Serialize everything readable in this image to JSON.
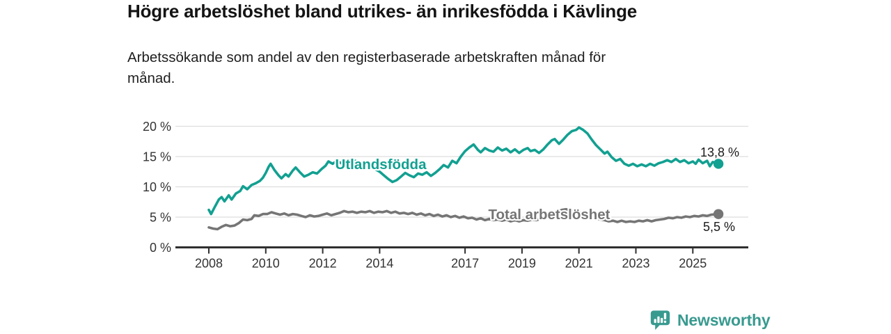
{
  "header": {
    "title": "Högre arbetslöshet bland utrikes- än inrikesfödda i Kävlinge",
    "subtitle": "Arbetssökande som andel av den registerbaserade arbetskraften månad för\nmånad."
  },
  "footer": {
    "brand": "Newsworthy"
  },
  "colors": {
    "accent_teal": "#12a091",
    "series_gray": "#757575",
    "axis_line": "#2f2f2f",
    "grid_line": "#dddddd",
    "tick_text": "#333333",
    "annotation_text": "#1a1a1a",
    "brand_teal": "#389a8f",
    "background": "#ffffff"
  },
  "chart_data": {
    "type": "line",
    "title": "Högre arbetslöshet bland utrikes- än inrikesfödda i Kävlinge",
    "subtitle": "Arbetssökande som andel av den registerbaserade arbetskraften månad för månad.",
    "grid": true,
    "legend_position": "inline-labels",
    "x_axis": {
      "ticks": [
        2008,
        2010,
        2012,
        2014,
        2017,
        2019,
        2021,
        2023,
        2025
      ],
      "tick_labels": [
        "2008",
        "2010",
        "2012",
        "2014",
        "2017",
        "2019",
        "2021",
        "2023",
        "2025"
      ],
      "range": [
        2006.85,
        2026.95
      ]
    },
    "y_axis": {
      "ticks": [
        0,
        5,
        10,
        15,
        20
      ],
      "tick_labels": [
        "0 %",
        "5 %",
        "10 %",
        "15 %",
        "20 %"
      ],
      "range": [
        0,
        20
      ],
      "unit": "%"
    },
    "series": [
      {
        "name": "Utlandsfödda",
        "color": "#12a091",
        "end_value": 13.8,
        "end_label": "13,8 %",
        "points": [
          [
            2008.0,
            6.2
          ],
          [
            2008.08,
            5.5
          ],
          [
            2008.2,
            6.6
          ],
          [
            2008.35,
            7.9
          ],
          [
            2008.45,
            8.3
          ],
          [
            2008.55,
            7.6
          ],
          [
            2008.7,
            8.6
          ],
          [
            2008.8,
            7.9
          ],
          [
            2008.95,
            8.9
          ],
          [
            2009.1,
            9.3
          ],
          [
            2009.2,
            10.1
          ],
          [
            2009.35,
            9.6
          ],
          [
            2009.5,
            10.3
          ],
          [
            2009.65,
            10.6
          ],
          [
            2009.8,
            11.0
          ],
          [
            2009.9,
            11.5
          ],
          [
            2010.0,
            12.3
          ],
          [
            2010.1,
            13.3
          ],
          [
            2010.17,
            13.8
          ],
          [
            2010.3,
            12.8
          ],
          [
            2010.45,
            11.9
          ],
          [
            2010.55,
            11.4
          ],
          [
            2010.7,
            12.1
          ],
          [
            2010.8,
            11.7
          ],
          [
            2010.95,
            12.7
          ],
          [
            2011.05,
            13.2
          ],
          [
            2011.2,
            12.4
          ],
          [
            2011.35,
            11.7
          ],
          [
            2011.5,
            12.0
          ],
          [
            2011.65,
            12.4
          ],
          [
            2011.8,
            12.2
          ],
          [
            2011.95,
            12.9
          ],
          [
            2012.1,
            13.5
          ],
          [
            2012.2,
            14.2
          ],
          [
            2012.35,
            13.8
          ],
          [
            2012.5,
            14.3
          ],
          [
            2012.65,
            13.9
          ],
          [
            2012.8,
            14.4
          ],
          [
            2013.0,
            14.0
          ],
          [
            2013.15,
            14.3
          ],
          [
            2013.3,
            13.8
          ],
          [
            2013.5,
            14.1
          ],
          [
            2013.7,
            13.4
          ],
          [
            2013.85,
            12.9
          ],
          [
            2014.0,
            12.5
          ],
          [
            2014.15,
            11.9
          ],
          [
            2014.3,
            11.3
          ],
          [
            2014.45,
            10.8
          ],
          [
            2014.6,
            11.1
          ],
          [
            2014.75,
            11.7
          ],
          [
            2014.9,
            12.3
          ],
          [
            2015.05,
            11.9
          ],
          [
            2015.2,
            11.6
          ],
          [
            2015.35,
            12.2
          ],
          [
            2015.5,
            12.0
          ],
          [
            2015.65,
            12.4
          ],
          [
            2015.8,
            11.8
          ],
          [
            2015.95,
            12.3
          ],
          [
            2016.1,
            12.9
          ],
          [
            2016.25,
            13.6
          ],
          [
            2016.4,
            13.2
          ],
          [
            2016.55,
            14.3
          ],
          [
            2016.7,
            13.9
          ],
          [
            2016.85,
            15.0
          ],
          [
            2017.0,
            15.9
          ],
          [
            2017.15,
            16.5
          ],
          [
            2017.3,
            17.0
          ],
          [
            2017.45,
            16.1
          ],
          [
            2017.55,
            15.7
          ],
          [
            2017.7,
            16.4
          ],
          [
            2017.85,
            16.0
          ],
          [
            2018.0,
            15.8
          ],
          [
            2018.15,
            16.5
          ],
          [
            2018.3,
            16.0
          ],
          [
            2018.45,
            16.3
          ],
          [
            2018.6,
            15.7
          ],
          [
            2018.75,
            16.2
          ],
          [
            2018.9,
            15.6
          ],
          [
            2019.05,
            16.1
          ],
          [
            2019.2,
            16.4
          ],
          [
            2019.3,
            15.9
          ],
          [
            2019.45,
            16.1
          ],
          [
            2019.6,
            15.6
          ],
          [
            2019.75,
            16.2
          ],
          [
            2019.9,
            17.0
          ],
          [
            2020.05,
            17.7
          ],
          [
            2020.15,
            17.9
          ],
          [
            2020.3,
            17.1
          ],
          [
            2020.45,
            17.8
          ],
          [
            2020.6,
            18.6
          ],
          [
            2020.75,
            19.2
          ],
          [
            2020.9,
            19.4
          ],
          [
            2021.0,
            19.8
          ],
          [
            2021.15,
            19.4
          ],
          [
            2021.3,
            18.8
          ],
          [
            2021.45,
            17.8
          ],
          [
            2021.6,
            16.9
          ],
          [
            2021.75,
            16.2
          ],
          [
            2021.9,
            15.5
          ],
          [
            2022.0,
            15.8
          ],
          [
            2022.15,
            14.9
          ],
          [
            2022.3,
            14.3
          ],
          [
            2022.45,
            14.6
          ],
          [
            2022.6,
            13.8
          ],
          [
            2022.75,
            13.5
          ],
          [
            2022.9,
            13.8
          ],
          [
            2023.05,
            13.4
          ],
          [
            2023.2,
            13.7
          ],
          [
            2023.35,
            13.4
          ],
          [
            2023.5,
            13.8
          ],
          [
            2023.65,
            13.5
          ],
          [
            2023.8,
            13.9
          ],
          [
            2023.95,
            14.1
          ],
          [
            2024.1,
            14.4
          ],
          [
            2024.25,
            14.1
          ],
          [
            2024.4,
            14.6
          ],
          [
            2024.55,
            14.1
          ],
          [
            2024.7,
            14.4
          ],
          [
            2024.85,
            13.9
          ],
          [
            2025.0,
            14.2
          ],
          [
            2025.1,
            13.8
          ],
          [
            2025.2,
            14.5
          ],
          [
            2025.35,
            13.9
          ],
          [
            2025.5,
            14.3
          ],
          [
            2025.6,
            13.4
          ],
          [
            2025.7,
            14.1
          ],
          [
            2025.9,
            13.8
          ]
        ]
      },
      {
        "name": "Total arbetslöshet",
        "color": "#757575",
        "end_value": 5.5,
        "end_label": "5,5 %",
        "points": [
          [
            2008.0,
            3.3
          ],
          [
            2008.15,
            3.1
          ],
          [
            2008.3,
            3.0
          ],
          [
            2008.45,
            3.4
          ],
          [
            2008.6,
            3.7
          ],
          [
            2008.75,
            3.5
          ],
          [
            2008.9,
            3.6
          ],
          [
            2009.05,
            4.0
          ],
          [
            2009.2,
            4.6
          ],
          [
            2009.35,
            4.5
          ],
          [
            2009.5,
            4.7
          ],
          [
            2009.6,
            5.3
          ],
          [
            2009.75,
            5.2
          ],
          [
            2009.9,
            5.5
          ],
          [
            2010.05,
            5.5
          ],
          [
            2010.2,
            5.8
          ],
          [
            2010.35,
            5.6
          ],
          [
            2010.5,
            5.4
          ],
          [
            2010.65,
            5.6
          ],
          [
            2010.8,
            5.3
          ],
          [
            2010.95,
            5.5
          ],
          [
            2011.1,
            5.4
          ],
          [
            2011.25,
            5.2
          ],
          [
            2011.4,
            5.0
          ],
          [
            2011.55,
            5.3
          ],
          [
            2011.7,
            5.1
          ],
          [
            2011.85,
            5.2
          ],
          [
            2012.0,
            5.4
          ],
          [
            2012.15,
            5.6
          ],
          [
            2012.3,
            5.3
          ],
          [
            2012.45,
            5.5
          ],
          [
            2012.6,
            5.7
          ],
          [
            2012.75,
            6.0
          ],
          [
            2012.9,
            5.8
          ],
          [
            2013.05,
            5.9
          ],
          [
            2013.2,
            5.7
          ],
          [
            2013.35,
            5.9
          ],
          [
            2013.5,
            5.8
          ],
          [
            2013.65,
            6.0
          ],
          [
            2013.8,
            5.7
          ],
          [
            2013.95,
            5.9
          ],
          [
            2014.1,
            5.8
          ],
          [
            2014.25,
            6.0
          ],
          [
            2014.4,
            5.7
          ],
          [
            2014.55,
            5.9
          ],
          [
            2014.7,
            5.6
          ],
          [
            2014.85,
            5.7
          ],
          [
            2015.0,
            5.5
          ],
          [
            2015.15,
            5.7
          ],
          [
            2015.3,
            5.4
          ],
          [
            2015.45,
            5.6
          ],
          [
            2015.6,
            5.3
          ],
          [
            2015.75,
            5.5
          ],
          [
            2015.9,
            5.2
          ],
          [
            2016.05,
            5.4
          ],
          [
            2016.2,
            5.1
          ],
          [
            2016.35,
            5.3
          ],
          [
            2016.5,
            5.0
          ],
          [
            2016.65,
            5.2
          ],
          [
            2016.8,
            4.9
          ],
          [
            2016.95,
            5.1
          ],
          [
            2017.1,
            4.8
          ],
          [
            2017.25,
            4.9
          ],
          [
            2017.4,
            4.6
          ],
          [
            2017.55,
            4.8
          ],
          [
            2017.7,
            4.5
          ],
          [
            2017.85,
            4.7
          ],
          [
            2018.0,
            4.5
          ],
          [
            2018.15,
            4.6
          ],
          [
            2018.3,
            4.4
          ],
          [
            2018.45,
            4.6
          ],
          [
            2018.6,
            4.3
          ],
          [
            2018.75,
            4.5
          ],
          [
            2018.9,
            4.3
          ],
          [
            2019.05,
            4.5
          ],
          [
            2019.2,
            4.4
          ],
          [
            2019.35,
            4.6
          ],
          [
            2019.5,
            4.5
          ],
          [
            2019.65,
            4.7
          ],
          [
            2019.8,
            4.8
          ],
          [
            2019.95,
            5.0
          ],
          [
            2020.1,
            5.5
          ],
          [
            2020.25,
            5.9
          ],
          [
            2020.4,
            6.2
          ],
          [
            2020.55,
            6.3
          ],
          [
            2020.7,
            6.1
          ],
          [
            2020.85,
            6.0
          ],
          [
            2021.0,
            5.8
          ],
          [
            2021.15,
            5.6
          ],
          [
            2021.3,
            5.3
          ],
          [
            2021.45,
            5.1
          ],
          [
            2021.6,
            4.8
          ],
          [
            2021.75,
            4.6
          ],
          [
            2021.9,
            4.5
          ],
          [
            2022.05,
            4.3
          ],
          [
            2022.2,
            4.4
          ],
          [
            2022.35,
            4.2
          ],
          [
            2022.5,
            4.4
          ],
          [
            2022.65,
            4.2
          ],
          [
            2022.8,
            4.3
          ],
          [
            2022.95,
            4.2
          ],
          [
            2023.1,
            4.4
          ],
          [
            2023.25,
            4.3
          ],
          [
            2023.4,
            4.5
          ],
          [
            2023.55,
            4.3
          ],
          [
            2023.7,
            4.5
          ],
          [
            2023.85,
            4.6
          ],
          [
            2024.0,
            4.7
          ],
          [
            2024.15,
            4.9
          ],
          [
            2024.3,
            4.8
          ],
          [
            2024.45,
            5.0
          ],
          [
            2024.6,
            4.9
          ],
          [
            2024.75,
            5.1
          ],
          [
            2024.9,
            5.0
          ],
          [
            2025.05,
            5.2
          ],
          [
            2025.2,
            5.1
          ],
          [
            2025.35,
            5.3
          ],
          [
            2025.5,
            5.2
          ],
          [
            2025.65,
            5.4
          ],
          [
            2025.9,
            5.5
          ]
        ]
      }
    ]
  }
}
